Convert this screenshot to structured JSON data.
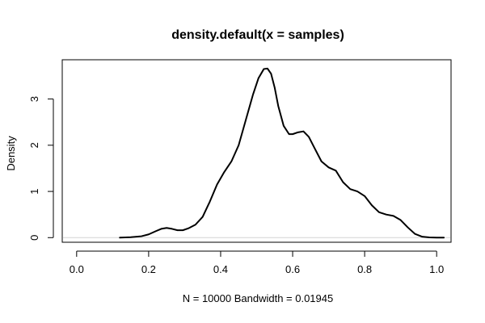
{
  "chart_data": {
    "type": "line",
    "title": "density.default(x = samples)",
    "xlabel": "N = 10000   Bandwidth = 0.01945",
    "ylabel": "Density",
    "xlim": [
      -0.04,
      1.04
    ],
    "ylim": [
      -0.1,
      3.85
    ],
    "x_ticks": [
      0.0,
      0.2,
      0.4,
      0.6,
      0.8,
      1.0
    ],
    "x_tick_labels": [
      "0.0",
      "0.2",
      "0.4",
      "0.6",
      "0.8",
      "1.0"
    ],
    "y_ticks": [
      0,
      1,
      2,
      3
    ],
    "y_tick_labels": [
      "0",
      "1",
      "2",
      "3"
    ],
    "grid": false,
    "zero_line": true,
    "line_color": "#000000",
    "series": [
      {
        "x": [
          0.12,
          0.15,
          0.18,
          0.2,
          0.22,
          0.235,
          0.25,
          0.265,
          0.28,
          0.295,
          0.31,
          0.33,
          0.35,
          0.37,
          0.39,
          0.41,
          0.43,
          0.45,
          0.47,
          0.49,
          0.505,
          0.52,
          0.53,
          0.54,
          0.55,
          0.56,
          0.575,
          0.59,
          0.6,
          0.615,
          0.63,
          0.645,
          0.66,
          0.68,
          0.7,
          0.72,
          0.74,
          0.76,
          0.78,
          0.8,
          0.82,
          0.84,
          0.86,
          0.88,
          0.9,
          0.92,
          0.94,
          0.96,
          0.98,
          1.0,
          1.02
        ],
        "y": [
          0.0,
          0.01,
          0.03,
          0.07,
          0.14,
          0.19,
          0.21,
          0.19,
          0.16,
          0.16,
          0.2,
          0.28,
          0.45,
          0.78,
          1.15,
          1.42,
          1.65,
          2.0,
          2.55,
          3.1,
          3.45,
          3.65,
          3.66,
          3.55,
          3.25,
          2.85,
          2.42,
          2.24,
          2.24,
          2.28,
          2.3,
          2.18,
          1.95,
          1.65,
          1.52,
          1.45,
          1.2,
          1.05,
          1.0,
          0.9,
          0.7,
          0.55,
          0.5,
          0.47,
          0.38,
          0.22,
          0.08,
          0.02,
          0.005,
          0.0,
          0.0
        ]
      }
    ]
  }
}
